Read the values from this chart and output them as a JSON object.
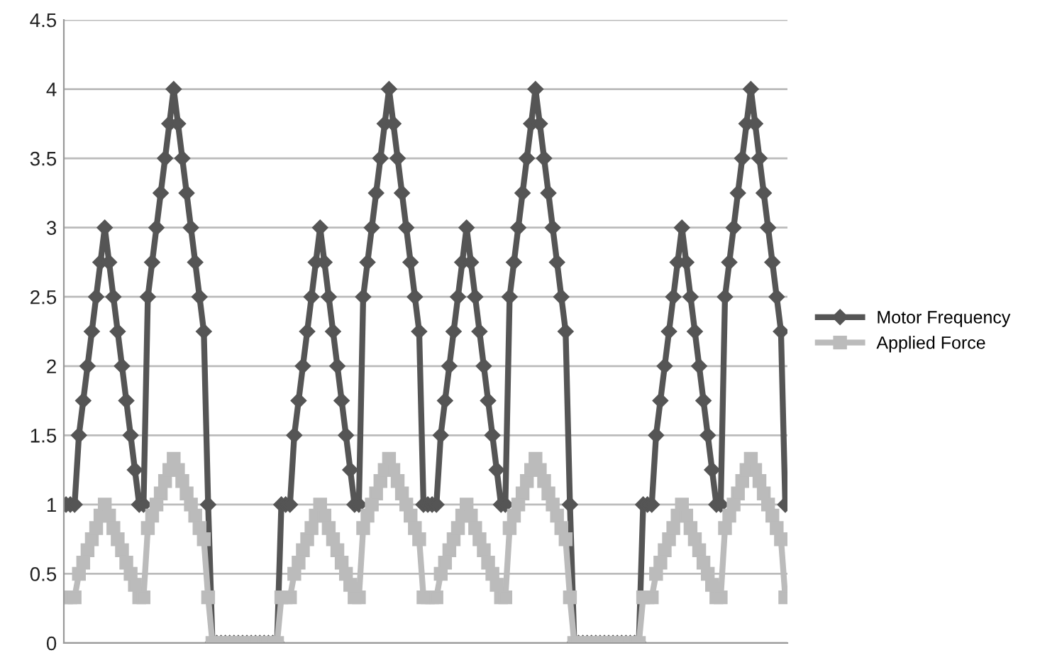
{
  "chart_data": {
    "type": "line",
    "categories": [
      null,
      null,
      null,
      null,
      null,
      null,
      null,
      null,
      null,
      null,
      null,
      null,
      null,
      null,
      null,
      null,
      null,
      null,
      null,
      null,
      null,
      null,
      null,
      null,
      null,
      null,
      null,
      null,
      null,
      null,
      null,
      null,
      null,
      null,
      null,
      null,
      null,
      null,
      null,
      null,
      null,
      null,
      null,
      null,
      null,
      null,
      null,
      null,
      null,
      null,
      null,
      null,
      null,
      null,
      null,
      null,
      null,
      null,
      null,
      null,
      null,
      null,
      null,
      null,
      null,
      null,
      null,
      null,
      null,
      null,
      null,
      null,
      null,
      null,
      null,
      null,
      null,
      null,
      null,
      null,
      null,
      null,
      null,
      null,
      null,
      null,
      null,
      null,
      null,
      null,
      null,
      null,
      null,
      null,
      null,
      null,
      null,
      null,
      null,
      null,
      null,
      null,
      null,
      null,
      null,
      null,
      null,
      null,
      null,
      null,
      null,
      null,
      null,
      null,
      null,
      null,
      null,
      null,
      null,
      null,
      null,
      null,
      null,
      null,
      null,
      null,
      null,
      null,
      null,
      null,
      null,
      null,
      null,
      null,
      null,
      null,
      null,
      null,
      null,
      null,
      null,
      null,
      null,
      null,
      null,
      null,
      null,
      null,
      null,
      null,
      null,
      null,
      null,
      null,
      null,
      null,
      null,
      null,
      null,
      null,
      null,
      null,
      null,
      null,
      null,
      null,
      null,
      null
    ],
    "series": [
      {
        "name": "Motor Frequency",
        "color": "#555555",
        "marker": "diamond",
        "values": [
          1,
          1,
          1,
          1.5,
          1.75,
          2,
          2.25,
          2.5,
          2.75,
          3,
          2.75,
          2.5,
          2.25,
          2,
          1.75,
          1.5,
          1.25,
          1,
          1,
          2.5,
          2.75,
          3,
          3.25,
          3.5,
          3.75,
          4,
          3.75,
          3.5,
          3.25,
          3,
          2.75,
          2.5,
          2.25,
          1,
          0,
          0,
          0,
          0,
          0,
          0,
          0,
          0,
          0,
          0,
          0,
          0,
          0,
          0,
          0,
          0,
          1,
          1,
          1,
          1.5,
          1.75,
          2,
          2.25,
          2.5,
          2.75,
          3,
          2.75,
          2.5,
          2.25,
          2,
          1.75,
          1.5,
          1.25,
          1,
          1,
          2.5,
          2.75,
          3,
          3.25,
          3.5,
          3.75,
          4,
          3.75,
          3.5,
          3.25,
          3,
          2.75,
          2.5,
          2.25,
          1,
          1,
          1,
          1,
          1.5,
          1.75,
          2,
          2.25,
          2.5,
          2.75,
          3,
          2.75,
          2.5,
          2.25,
          2,
          1.75,
          1.5,
          1.25,
          1,
          1,
          2.5,
          2.75,
          3,
          3.25,
          3.5,
          3.75,
          4,
          3.75,
          3.5,
          3.25,
          3,
          2.75,
          2.5,
          2.25,
          1,
          0,
          0,
          0,
          0,
          0,
          0,
          0,
          0,
          0,
          0,
          0,
          0,
          0,
          0,
          0,
          0,
          1,
          1,
          1,
          1.5,
          1.75,
          2,
          2.25,
          2.5,
          2.75,
          3,
          2.75,
          2.5,
          2.25,
          2,
          1.75,
          1.5,
          1.25,
          1,
          1,
          2.5,
          2.75,
          3,
          3.25,
          3.5,
          3.75,
          4,
          3.75,
          3.5,
          3.25,
          3,
          2.75,
          2.5,
          2.25,
          1
        ]
      },
      {
        "name": "Applied Force",
        "color": "#bbbbbb",
        "marker": "square",
        "values": [
          0.33,
          0.33,
          0.33,
          0.5,
          0.58,
          0.67,
          0.75,
          0.83,
          0.92,
          1,
          0.92,
          0.83,
          0.75,
          0.67,
          0.58,
          0.5,
          0.42,
          0.33,
          0.33,
          0.83,
          0.92,
          1,
          1.08,
          1.17,
          1.25,
          1.33,
          1.25,
          1.17,
          1.08,
          1,
          0.92,
          0.83,
          0.75,
          0.33,
          0,
          0,
          0,
          0,
          0,
          0,
          0,
          0,
          0,
          0,
          0,
          0,
          0,
          0,
          0,
          0,
          0.33,
          0.33,
          0.33,
          0.5,
          0.58,
          0.67,
          0.75,
          0.83,
          0.92,
          1,
          0.92,
          0.83,
          0.75,
          0.67,
          0.58,
          0.5,
          0.42,
          0.33,
          0.33,
          0.83,
          0.92,
          1,
          1.08,
          1.17,
          1.25,
          1.33,
          1.25,
          1.17,
          1.08,
          1,
          0.92,
          0.83,
          0.75,
          0.33,
          0.33,
          0.33,
          0.33,
          0.5,
          0.58,
          0.67,
          0.75,
          0.83,
          0.92,
          1,
          0.92,
          0.83,
          0.75,
          0.67,
          0.58,
          0.5,
          0.42,
          0.33,
          0.33,
          0.83,
          0.92,
          1,
          1.08,
          1.17,
          1.25,
          1.33,
          1.25,
          1.17,
          1.08,
          1,
          0.92,
          0.83,
          0.75,
          0.33,
          0,
          0,
          0,
          0,
          0,
          0,
          0,
          0,
          0,
          0,
          0,
          0,
          0,
          0,
          0,
          0,
          0.33,
          0.33,
          0.33,
          0.5,
          0.58,
          0.67,
          0.75,
          0.83,
          0.92,
          1,
          0.92,
          0.83,
          0.75,
          0.67,
          0.58,
          0.5,
          0.42,
          0.33,
          0.33,
          0.83,
          0.92,
          1,
          1.08,
          1.17,
          1.25,
          1.33,
          1.25,
          1.17,
          1.08,
          1,
          0.92,
          0.83,
          0.75,
          0.33
        ]
      }
    ],
    "ylim": [
      0,
      4.5
    ],
    "yticks": [
      0,
      0.5,
      1,
      1.5,
      2,
      2.5,
      3,
      3.5,
      4,
      4.5
    ],
    "grid": "y",
    "legend": "right",
    "line_style": "solid"
  }
}
